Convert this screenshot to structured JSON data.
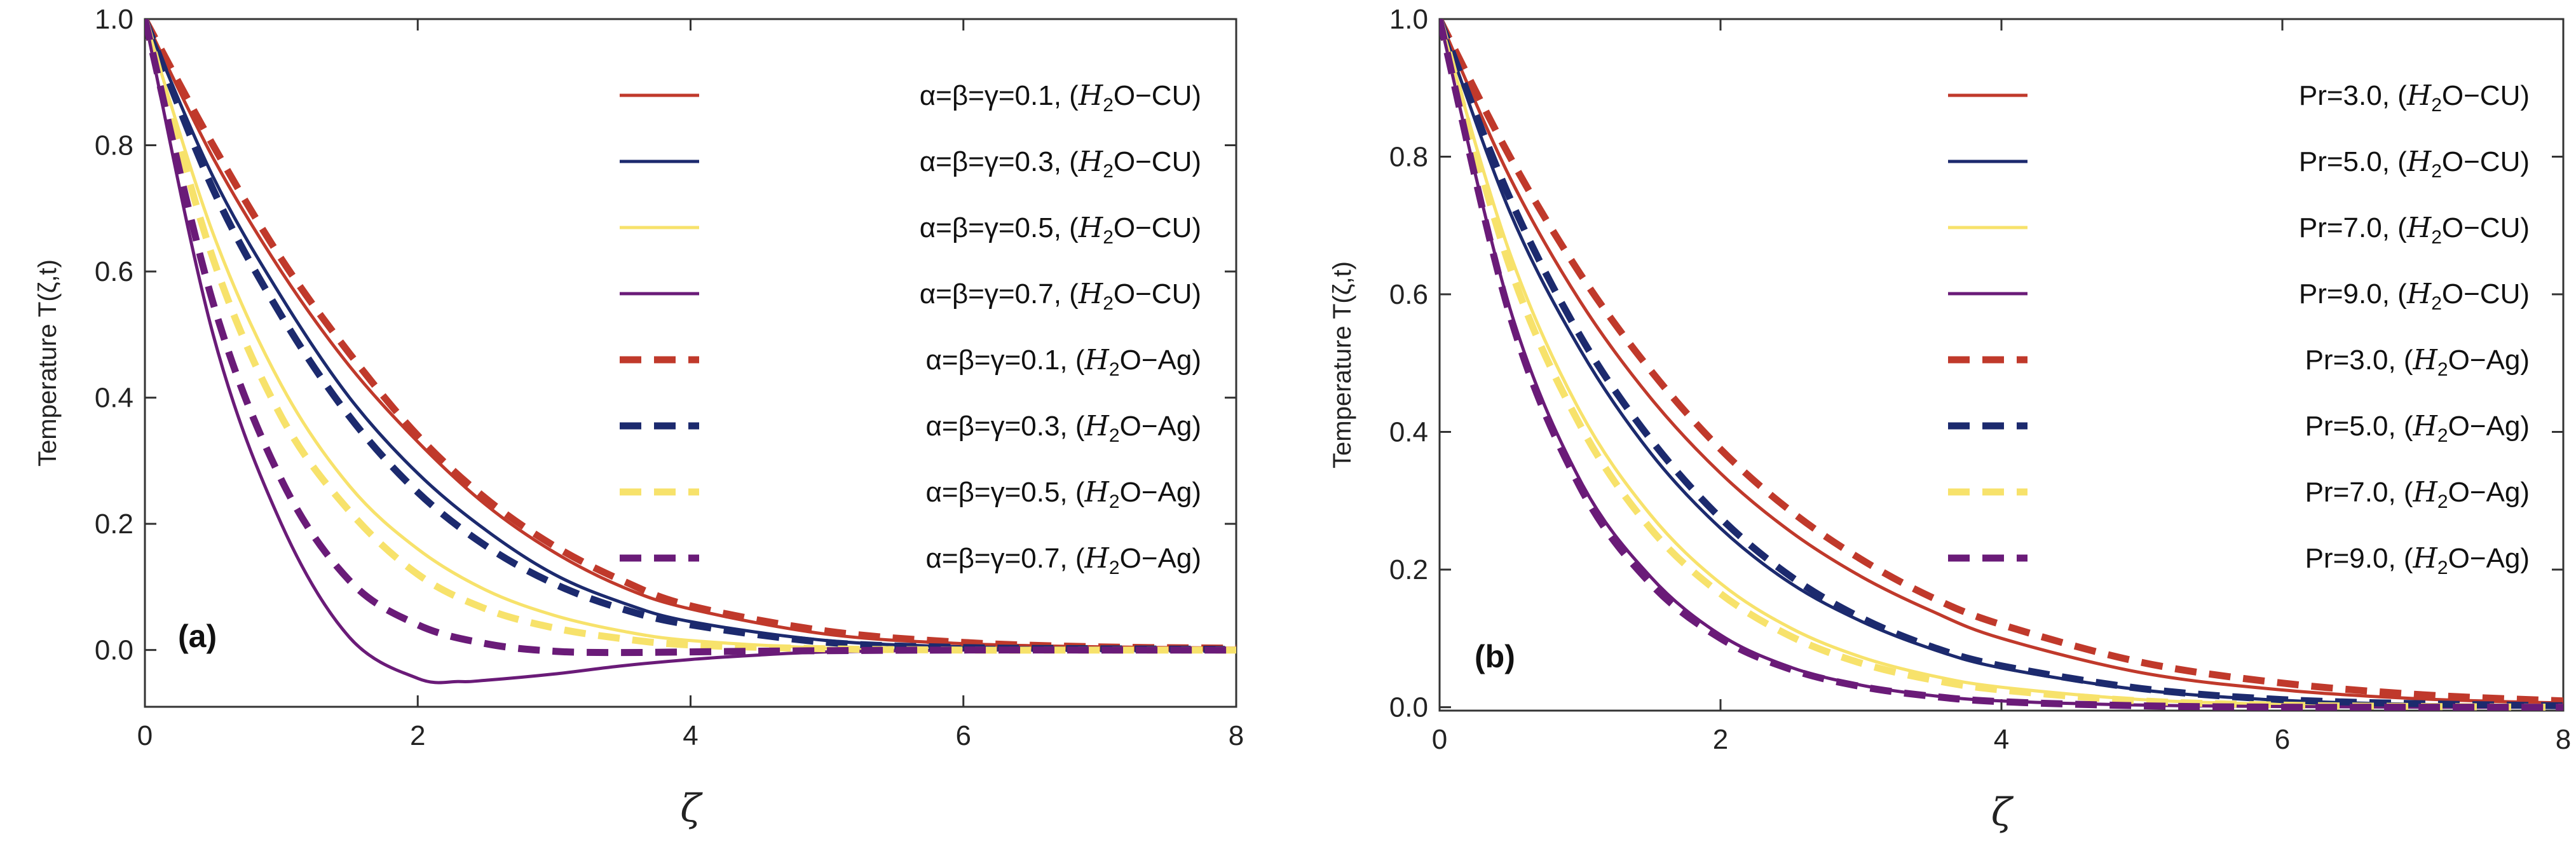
{
  "chart_data": [
    {
      "type": "line",
      "panel_label": "(a)",
      "xlabel": "ζ",
      "ylabel": "Temperature T(ζ,t)",
      "xlim": [
        0,
        8
      ],
      "ylim": [
        -0.09,
        1.0
      ],
      "xticks": [
        0,
        2,
        4,
        6,
        8
      ],
      "yticks": [
        0.0,
        0.2,
        0.4,
        0.6,
        0.8,
        1.0
      ],
      "xtick_labels": [
        "0",
        "2",
        "4",
        "6",
        "8"
      ],
      "ytick_labels": [
        "0.0",
        "0.2",
        "0.4",
        "0.6",
        "0.8",
        "1.0"
      ],
      "legend_position": "top-right",
      "series": [
        {
          "name": "α=β=γ=0.1, (H2O−CU)",
          "label_prefix": "α=β=γ=0.1, (",
          "color": "#c0392b",
          "style": "solid",
          "x": [
            0,
            0.5,
            1,
            1.5,
            2,
            2.5,
            3,
            3.5,
            4,
            5,
            6,
            7,
            8
          ],
          "y": [
            1.0,
            0.78,
            0.6,
            0.45,
            0.33,
            0.23,
            0.155,
            0.1,
            0.065,
            0.025,
            0.01,
            0.005,
            0.003
          ]
        },
        {
          "name": "α=β=γ=0.3, (H2O−CU)",
          "label_prefix": "α=β=γ=0.3, (",
          "color": "#1c2a6e",
          "style": "solid",
          "x": [
            0,
            0.5,
            1,
            1.5,
            2,
            2.5,
            3,
            3.5,
            4,
            5,
            6,
            7,
            8
          ],
          "y": [
            1.0,
            0.75,
            0.56,
            0.4,
            0.28,
            0.19,
            0.12,
            0.075,
            0.045,
            0.015,
            0.005,
            0.003,
            0.002
          ]
        },
        {
          "name": "α=β=γ=0.5, (H2O−CU)",
          "label_prefix": "α=β=γ=0.5, (",
          "color": "#f7e26b",
          "style": "solid",
          "x": [
            0,
            0.5,
            1,
            1.5,
            2,
            2.5,
            3,
            3.5,
            4,
            5,
            6,
            7,
            8
          ],
          "y": [
            1.0,
            0.66,
            0.42,
            0.26,
            0.16,
            0.095,
            0.055,
            0.03,
            0.015,
            0.003,
            0.0,
            0.0,
            0.0
          ]
        },
        {
          "name": "α=β=γ=0.7, (H2O−CU)",
          "label_prefix": "α=β=γ=0.7, (",
          "color": "#6a1b78",
          "style": "solid",
          "x": [
            0,
            0.5,
            1,
            1.5,
            2,
            2.3,
            2.5,
            3,
            3.5,
            4,
            4.5,
            5,
            6,
            7,
            8
          ],
          "y": [
            1.0,
            0.5,
            0.2,
            0.02,
            -0.045,
            -0.05,
            -0.048,
            -0.038,
            -0.025,
            -0.015,
            -0.008,
            -0.003,
            0.0,
            0.0,
            0.0
          ]
        },
        {
          "name": "α=β=γ=0.1, (H2O−Ag)",
          "label_prefix": "α=β=γ=0.1, (",
          "color": "#c0392b",
          "style": "dashed",
          "x": [
            0,
            0.5,
            1,
            1.5,
            2,
            2.5,
            3,
            3.5,
            4,
            5,
            6,
            7,
            8
          ],
          "y": [
            1.0,
            0.8,
            0.62,
            0.47,
            0.34,
            0.24,
            0.165,
            0.11,
            0.07,
            0.03,
            0.012,
            0.005,
            0.003
          ]
        },
        {
          "name": "α=β=γ=0.3, (H2O−Ag)",
          "label_prefix": "α=β=γ=0.3, (",
          "color": "#1c2a6e",
          "style": "dashed",
          "x": [
            0,
            0.5,
            1,
            1.5,
            2,
            2.5,
            3,
            3.5,
            4,
            5,
            6,
            7,
            8
          ],
          "y": [
            1.0,
            0.73,
            0.53,
            0.37,
            0.25,
            0.165,
            0.105,
            0.065,
            0.04,
            0.012,
            0.004,
            0.002,
            0.001
          ]
        },
        {
          "name": "α=β=γ=0.5, (H2O−Ag)",
          "label_prefix": "α=β=γ=0.5, (",
          "color": "#f7e26b",
          "style": "dashed",
          "x": [
            0,
            0.5,
            1,
            1.5,
            2,
            2.5,
            3,
            3.5,
            4,
            5,
            6,
            7,
            8
          ],
          "y": [
            1.0,
            0.62,
            0.37,
            0.22,
            0.12,
            0.065,
            0.035,
            0.018,
            0.008,
            0.002,
            0.0,
            0.0,
            0.0
          ]
        },
        {
          "name": "α=β=γ=0.7, (H2O−Ag)",
          "label_prefix": "α=β=γ=0.7, (",
          "color": "#6a1b78",
          "style": "dashed",
          "x": [
            0,
            0.5,
            1,
            1.5,
            2,
            2.5,
            3,
            3.5,
            4,
            5,
            6,
            7,
            8
          ],
          "y": [
            1.0,
            0.55,
            0.27,
            0.11,
            0.04,
            0.01,
            -0.002,
            -0.004,
            -0.003,
            -0.001,
            0.0,
            0.0,
            0.0
          ]
        }
      ]
    },
    {
      "type": "line",
      "panel_label": "(b)",
      "xlabel": "ζ",
      "ylabel": "Temperature T(ζ,t)",
      "xlim": [
        0,
        8
      ],
      "ylim": [
        -0.005,
        1.0
      ],
      "xticks": [
        0,
        2,
        4,
        6,
        8
      ],
      "yticks": [
        0.0,
        0.2,
        0.4,
        0.6,
        0.8,
        1.0
      ],
      "xtick_labels": [
        "0",
        "2",
        "4",
        "6",
        "8"
      ],
      "ytick_labels": [
        "0.0",
        "0.2",
        "0.4",
        "0.6",
        "0.8",
        "1.0"
      ],
      "legend_position": "top-right",
      "series": [
        {
          "name": "Pr=3.0, (H2O−CU)",
          "label_prefix": "Pr=3.0, (",
          "color": "#c0392b",
          "style": "solid",
          "x": [
            0,
            0.5,
            1,
            1.5,
            2,
            2.5,
            3,
            3.5,
            4,
            5,
            6,
            7,
            8
          ],
          "y": [
            1.0,
            0.77,
            0.59,
            0.45,
            0.34,
            0.255,
            0.19,
            0.14,
            0.1,
            0.05,
            0.025,
            0.012,
            0.006
          ]
        },
        {
          "name": "Pr=5.0, (H2O−CU)",
          "label_prefix": "Pr=5.0, (",
          "color": "#1c2a6e",
          "style": "solid",
          "x": [
            0,
            0.5,
            1,
            1.5,
            2,
            2.5,
            3,
            3.5,
            4,
            5,
            6,
            7,
            8
          ],
          "y": [
            1.0,
            0.72,
            0.52,
            0.37,
            0.26,
            0.18,
            0.125,
            0.085,
            0.057,
            0.025,
            0.01,
            0.004,
            0.002
          ]
        },
        {
          "name": "Pr=7.0, (H2O−CU)",
          "label_prefix": "Pr=7.0, (",
          "color": "#f7e26b",
          "style": "solid",
          "x": [
            0,
            0.5,
            1,
            1.5,
            2,
            2.5,
            3,
            3.5,
            4,
            5,
            6,
            7,
            8
          ],
          "y": [
            1.0,
            0.66,
            0.43,
            0.28,
            0.18,
            0.115,
            0.073,
            0.046,
            0.029,
            0.011,
            0.004,
            0.001,
            0.0
          ]
        },
        {
          "name": "Pr=9.0, (H2O−CU)",
          "label_prefix": "Pr=9.0, (",
          "color": "#6a1b78",
          "style": "solid",
          "x": [
            0,
            0.5,
            1,
            1.5,
            2,
            2.5,
            3,
            3.5,
            4,
            5,
            6,
            7,
            8
          ],
          "y": [
            1.0,
            0.58,
            0.33,
            0.19,
            0.105,
            0.058,
            0.032,
            0.017,
            0.009,
            0.003,
            0.001,
            0.0,
            0.0
          ]
        },
        {
          "name": "Pr=3.0, (H2O−Ag)",
          "label_prefix": "Pr=3.0, (",
          "color": "#c0392b",
          "style": "dashed",
          "x": [
            0,
            0.5,
            1,
            1.5,
            2,
            2.5,
            3,
            3.5,
            4,
            5,
            6,
            7,
            8
          ],
          "y": [
            1.0,
            0.8,
            0.63,
            0.49,
            0.375,
            0.285,
            0.215,
            0.16,
            0.12,
            0.065,
            0.035,
            0.018,
            0.009
          ]
        },
        {
          "name": "Pr=5.0, (H2O−Ag)",
          "label_prefix": "Pr=5.0, (",
          "color": "#1c2a6e",
          "style": "dashed",
          "x": [
            0,
            0.5,
            1,
            1.5,
            2,
            2.5,
            3,
            3.5,
            4,
            5,
            6,
            7,
            8
          ],
          "y": [
            1.0,
            0.74,
            0.54,
            0.39,
            0.275,
            0.19,
            0.13,
            0.088,
            0.06,
            0.027,
            0.011,
            0.005,
            0.002
          ]
        },
        {
          "name": "Pr=7.0, (H2O−Ag)",
          "label_prefix": "Pr=7.0, (",
          "color": "#f7e26b",
          "style": "dashed",
          "x": [
            0,
            0.5,
            1,
            1.5,
            2,
            2.5,
            3,
            3.5,
            4,
            5,
            6,
            7,
            8
          ],
          "y": [
            1.0,
            0.64,
            0.41,
            0.26,
            0.165,
            0.103,
            0.064,
            0.04,
            0.025,
            0.009,
            0.003,
            0.001,
            0.0
          ]
        },
        {
          "name": "Pr=9.0, (H2O−Ag)",
          "label_prefix": "Pr=9.0, (",
          "color": "#6a1b78",
          "style": "dashed",
          "x": [
            0,
            0.5,
            1,
            1.5,
            2,
            2.5,
            3,
            3.5,
            4,
            5,
            6,
            7,
            8
          ],
          "y": [
            1.0,
            0.57,
            0.32,
            0.18,
            0.1,
            0.055,
            0.03,
            0.016,
            0.008,
            0.002,
            0.0,
            0.0,
            0.0
          ]
        }
      ]
    }
  ]
}
